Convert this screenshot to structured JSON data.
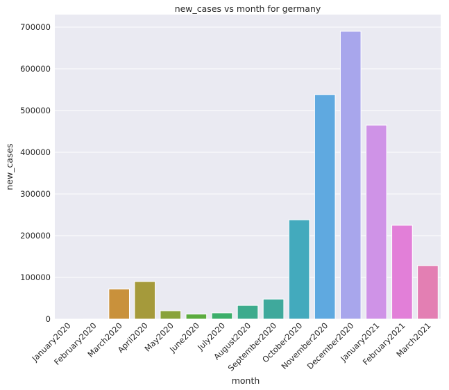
{
  "chart_data": {
    "type": "bar",
    "title": "new_cases vs month  for germany",
    "xlabel": "month",
    "ylabel": "new_cases",
    "categories": [
      "January2020",
      "February2020",
      "March2020",
      "April2020",
      "May2020",
      "June2020",
      "July2020",
      "August2020",
      "September2020",
      "October2020",
      "November2020",
      "December2020",
      "January2021",
      "February2021",
      "March2021"
    ],
    "values": [
      5,
      60,
      72000,
      90000,
      20000,
      12000,
      15000,
      33000,
      48000,
      238000,
      538000,
      690000,
      465000,
      225000,
      128000
    ],
    "colors": [
      "#e2756c",
      "#d88140",
      "#c9913b",
      "#a59a3b",
      "#89a33b",
      "#5bab3e",
      "#3cae6a",
      "#3dab8d",
      "#3fa99c",
      "#43aabd",
      "#5fa9e0",
      "#a8a6ec",
      "#cf93e7",
      "#e27fd8",
      "#e37fb3"
    ],
    "ylim": [
      0,
      730000
    ],
    "yticks": [
      0,
      100000,
      200000,
      300000,
      400000,
      500000,
      600000,
      700000
    ],
    "ytick_labels": [
      "0",
      "100000",
      "200000",
      "300000",
      "400000",
      "500000",
      "600000",
      "700000"
    ],
    "grid": true,
    "background": "#eaeaf2"
  }
}
